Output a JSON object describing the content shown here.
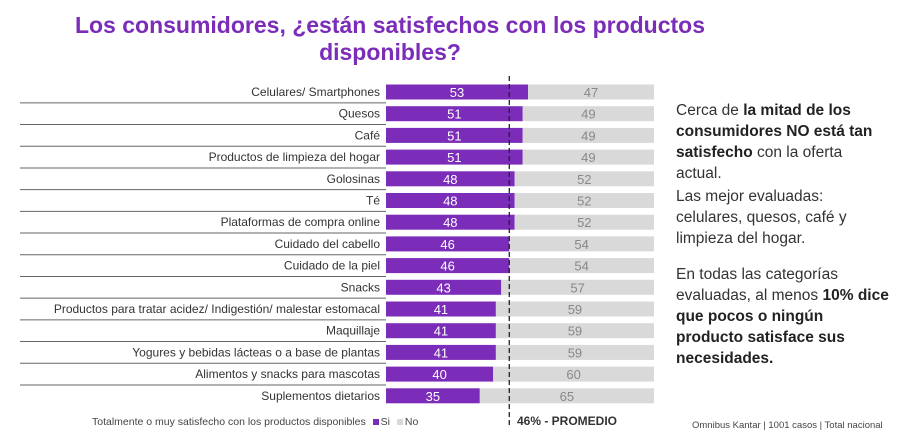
{
  "title": "Los consumidores, ¿están satisfechos con los productos disponibles?",
  "chart_data": {
    "type": "bar",
    "stacked": true,
    "orientation": "horizontal",
    "categories": [
      "Celulares/ Smartphones",
      "Quesos",
      "Café",
      "Productos de limpieza del hogar",
      "Golosinas",
      "Té",
      "Plataformas de compra online",
      "Cuidado del cabello",
      "Cuidado de la piel",
      "Snacks",
      "Productos para tratar acidez/ Indigestión/ malestar estomacal",
      "Maquillaje",
      "Yogures y bebidas lácteas o a base de plantas",
      "Alimentos y snacks para mascotas",
      "Suplementos dietarios"
    ],
    "series": [
      {
        "name": "Si",
        "color": "#7b2cb8",
        "values": [
          53,
          51,
          51,
          51,
          48,
          48,
          48,
          46,
          46,
          43,
          41,
          41,
          41,
          40,
          35
        ]
      },
      {
        "name": "No",
        "color": "#d9d9d9",
        "values": [
          47,
          49,
          49,
          49,
          52,
          52,
          52,
          54,
          54,
          57,
          59,
          59,
          59,
          60,
          65
        ]
      }
    ],
    "xlim": [
      0,
      100
    ],
    "reference_line": {
      "value": 46,
      "label": "46% - PROMEDIO"
    },
    "legend_title": "Totalmente o muy satisfecho con los productos disponibles",
    "legend_placement": "bottom-left"
  },
  "side": {
    "p1a": "Cerca de ",
    "p1b": "la mitad de los consumidores NO está tan satisfecho",
    "p1c": " con la oferta actual.",
    "p2": "Las mejor evaluadas: celulares, quesos, café y limpieza del hogar.",
    "p3a": "En todas las categorías evaluadas, al menos ",
    "p3b": "10% dice que pocos o ningún producto satisface sus necesidades."
  },
  "source": "Omnibus Kantar | 1001 casos | Total nacional"
}
